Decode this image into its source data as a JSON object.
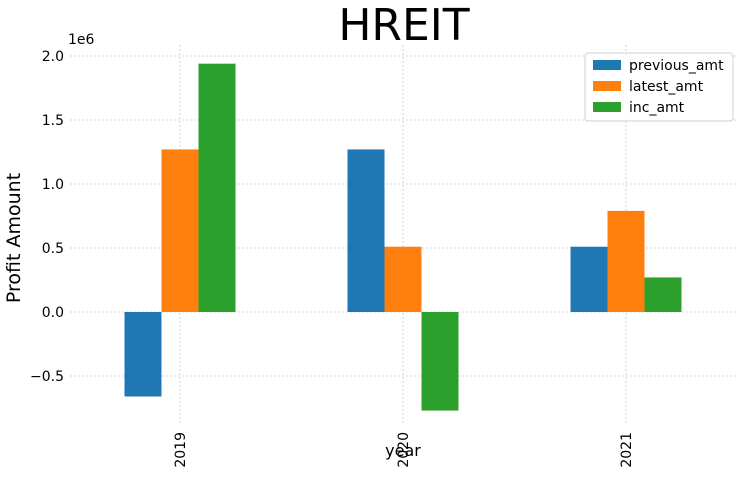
{
  "chart_data": {
    "type": "bar",
    "title": "HREIT",
    "xlabel": "year",
    "ylabel": "Profit Amount",
    "scale_label": "1e6",
    "categories": [
      "2019",
      "2020",
      "2021"
    ],
    "series": [
      {
        "name": "previous_amt",
        "color": "#1f77b4",
        "values": [
          -660000,
          1270000,
          510000
        ]
      },
      {
        "name": "latest_amt",
        "color": "#ff7f0e",
        "values": [
          1270000,
          510000,
          790000
        ]
      },
      {
        "name": "inc_amt",
        "color": "#2ca02c",
        "values": [
          1940000,
          -770000,
          270000
        ]
      }
    ],
    "yticks": [
      -0.5,
      0.0,
      0.5,
      1.0,
      1.5,
      2.0
    ],
    "ytick_labels": [
      "−0.5",
      "0.0",
      "0.5",
      "1.0",
      "1.5",
      "2.0"
    ],
    "ylim": [
      -850000,
      2080000
    ],
    "grid": true,
    "legend_position": "top-right",
    "x_tick_rotation": "vertical"
  }
}
